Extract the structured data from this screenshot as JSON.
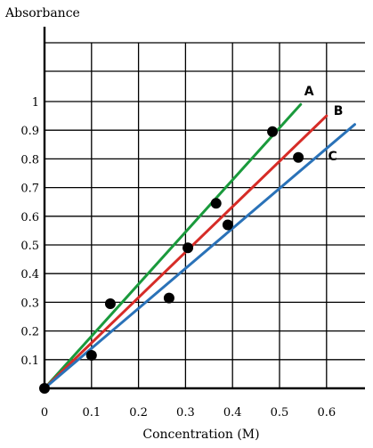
{
  "chart_data": {
    "type": "scatter",
    "title": "",
    "xlabel": "Concentration (M)",
    "ylabel": "Absorbance",
    "xlim": [
      0,
      0.65
    ],
    "ylim": [
      0,
      1.2
    ],
    "grid": true,
    "x_ticks": [
      0,
      0.1,
      0.2,
      0.3,
      0.4,
      0.5,
      0.6
    ],
    "x_tick_labels": [
      "0",
      "0.1",
      "0.2",
      "0.3",
      "0.4",
      "0.5",
      "0.6"
    ],
    "y_ticks": [
      0.1,
      0.2,
      0.3,
      0.4,
      0.5,
      0.6,
      0.7,
      0.8,
      0.9,
      1
    ],
    "y_tick_labels": [
      "0.1",
      "0.2",
      "0.3",
      "0.4",
      "0.5",
      "0.6",
      "0.7",
      "0.8",
      "0.9",
      "1"
    ],
    "points": [
      {
        "x": 0.0,
        "y": 0.0
      },
      {
        "x": 0.1,
        "y": 0.115
      },
      {
        "x": 0.14,
        "y": 0.295
      },
      {
        "x": 0.265,
        "y": 0.315
      },
      {
        "x": 0.305,
        "y": 0.49
      },
      {
        "x": 0.365,
        "y": 0.645
      },
      {
        "x": 0.39,
        "y": 0.57
      },
      {
        "x": 0.485,
        "y": 0.895
      },
      {
        "x": 0.54,
        "y": 0.805
      }
    ],
    "series": [
      {
        "name": "A",
        "color": "#1a9a3c",
        "x": [
          0.0,
          0.545
        ],
        "y": [
          0.0,
          0.99
        ]
      },
      {
        "name": "B",
        "color": "#d62c27",
        "x": [
          0.0,
          0.6
        ],
        "y": [
          0.0,
          0.95
        ]
      },
      {
        "name": "C",
        "color": "#2a72b8",
        "x": [
          0.0,
          0.66
        ],
        "y": [
          0.0,
          0.92
        ]
      }
    ]
  }
}
